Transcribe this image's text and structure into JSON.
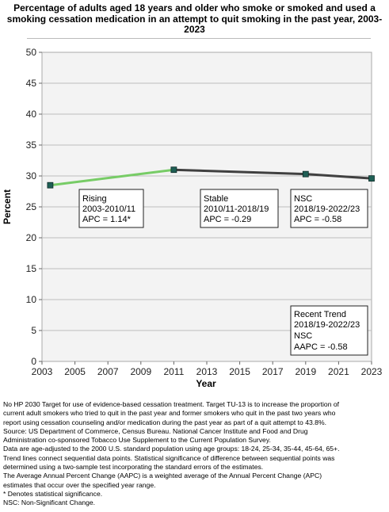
{
  "chart_data": {
    "type": "line",
    "title": "Percentage of  adults  aged 18 years and older who smoke or smoked and used a smoking cessation medication in an attempt to quit smoking in the past year, 2003-2023",
    "xlabel": "Year",
    "ylabel": "Percent",
    "xlim": [
      2003,
      2023
    ],
    "ylim": [
      0,
      50
    ],
    "xticks": [
      2003,
      2005,
      2007,
      2009,
      2011,
      2013,
      2015,
      2017,
      2019,
      2021,
      2023
    ],
    "yticks": [
      0,
      5,
      10,
      15,
      20,
      25,
      30,
      35,
      40,
      45,
      50
    ],
    "grid": true,
    "points": [
      {
        "x": 2003.5,
        "y": 28.5
      },
      {
        "x": 2011,
        "y": 31.0
      },
      {
        "x": 2019,
        "y": 30.3
      },
      {
        "x": 2023,
        "y": 29.6
      }
    ],
    "segments": [
      {
        "x": [
          2003.5,
          2011
        ],
        "y": [
          28.5,
          31.0
        ],
        "color": "#77cc66"
      },
      {
        "x": [
          2011,
          2019
        ],
        "y": [
          31.0,
          30.3
        ],
        "color": "#404040"
      },
      {
        "x": [
          2019,
          2023
        ],
        "y": [
          30.3,
          29.6
        ],
        "color": "#404040"
      }
    ],
    "marker_color": "#1f5f55",
    "annotations": [
      {
        "lines": [
          "Rising",
          "2003-2010/11",
          "APC =  1.14*"
        ]
      },
      {
        "lines": [
          "Stable",
          "2010/11-2018/19",
          "APC = -0.29"
        ]
      },
      {
        "lines": [
          "NSC",
          "2018/19-2022/23",
          "APC = -0.58"
        ]
      },
      {
        "lines": [
          "Recent Trend",
          "2018/19-2022/23",
          "NSC",
          "AAPC = -0.58"
        ]
      }
    ]
  },
  "footnotes": [
    "No HP 2030 Target for use of evidence-based cessation treatment. Target TU-13 is to increase the proportion of",
    "current adult smokers who tried to quit in the past year and former smokers who quit in the past two years who",
    "report using cessation counseling and/or medication during the past year as part of a quit attempt to 43.8%.",
    "Source: US Department of Commerce, Census Bureau. National Cancer Institute and Food and Drug",
    "Administration co-sponsored Tobacco Use Supplement to the Current Population Survey.",
    "Data are age-adjusted to the 2000 U.S. standard population using age groups: 18-24, 25-34, 35-44, 45-64, 65+.",
    "Trend lines connect sequential data points. Statistical significance of difference between sequential points was",
    "determined using a two-sample test incorporating the standard errors of the estimates.",
    "The Average Annual Percent Change (AAPC) is a weighted average of the Annual Percent Change (APC)",
    "estimates that occur over the specified year range.",
    "* Denotes statistical significance.",
    "NSC: Non-Significant Change."
  ]
}
